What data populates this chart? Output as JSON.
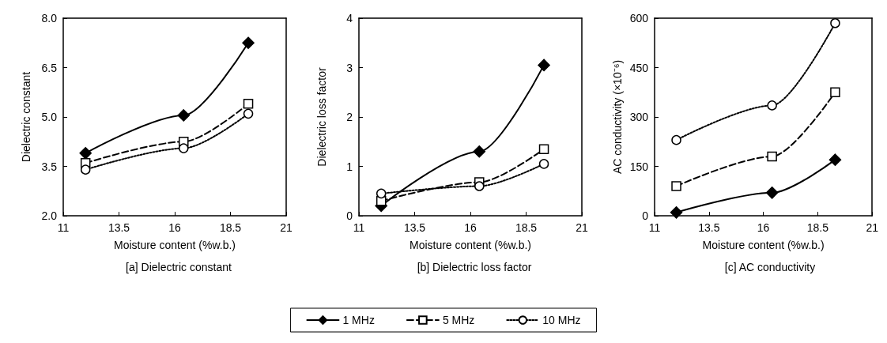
{
  "chart_data": [
    {
      "type": "line",
      "subtitle": "[a] Dielectric constant",
      "xlabel": "Moisture content (%w.b.)",
      "ylabel": "Dielectric constant",
      "x": [
        12,
        16.4,
        19.3
      ],
      "xlim": [
        11,
        21
      ],
      "xticks": [
        11,
        13.5,
        16,
        18.5,
        21
      ],
      "ylim": [
        2,
        8
      ],
      "yticks": [
        {
          "value": 2,
          "label": "2.0"
        },
        {
          "value": 3.5,
          "label": "3.5"
        },
        {
          "value": 5,
          "label": "5.0"
        },
        {
          "value": 6.5,
          "label": "6.5"
        },
        {
          "value": 8,
          "label": "8.0"
        }
      ],
      "grid": false,
      "legend": "bottom",
      "series": [
        {
          "name": "1 MHz",
          "color": "#000000",
          "marker": "diamond",
          "line_style": "solid",
          "values": [
            3.9,
            5.05,
            7.25
          ]
        },
        {
          "name": "5 MHz",
          "color": "#000000",
          "marker": "square",
          "line_style": "dashed",
          "values": [
            3.6,
            4.25,
            5.4
          ]
        },
        {
          "name": "10 MHz",
          "color": "#000000",
          "marker": "circle",
          "line_style": "dotted",
          "values": [
            3.4,
            4.05,
            5.1
          ]
        }
      ]
    },
    {
      "type": "line",
      "subtitle": "[b] Dielectric loss factor",
      "xlabel": "Moisture content (%w.b.)",
      "ylabel": "Dielectric loss factor",
      "x": [
        12,
        16.4,
        19.3
      ],
      "xlim": [
        11,
        21
      ],
      "xticks": [
        11,
        13.5,
        16,
        18.5,
        21
      ],
      "ylim": [
        0,
        4
      ],
      "yticks": [
        0,
        1,
        2,
        3,
        4
      ],
      "grid": false,
      "legend": "bottom",
      "series": [
        {
          "name": "1 MHz",
          "color": "#000000",
          "marker": "diamond",
          "line_style": "solid",
          "values": [
            0.2,
            1.3,
            3.05
          ]
        },
        {
          "name": "5 MHz",
          "color": "#000000",
          "marker": "square",
          "line_style": "dashed",
          "values": [
            0.3,
            0.68,
            1.35
          ]
        },
        {
          "name": "10 MHz",
          "color": "#000000",
          "marker": "circle",
          "line_style": "dotted",
          "values": [
            0.45,
            0.6,
            1.05
          ]
        }
      ]
    },
    {
      "type": "line",
      "subtitle": "[c] AC conductivity",
      "xlabel": "Moisture content (%w.b.)",
      "ylabel": "AC conductivity (×10⁻⁶)",
      "x": [
        12,
        16.4,
        19.3
      ],
      "xlim": [
        11,
        21
      ],
      "xticks": [
        11,
        13.5,
        16,
        18.5,
        21
      ],
      "ylim": [
        0,
        600
      ],
      "yticks": [
        0,
        150,
        300,
        450,
        600
      ],
      "grid": false,
      "legend": "bottom",
      "series": [
        {
          "name": "1 MHz",
          "color": "#000000",
          "marker": "diamond",
          "line_style": "solid",
          "values": [
            10,
            70,
            170
          ]
        },
        {
          "name": "5 MHz",
          "color": "#000000",
          "marker": "square",
          "line_style": "dashed",
          "values": [
            90,
            180,
            375
          ]
        },
        {
          "name": "10 MHz",
          "color": "#000000",
          "marker": "circle",
          "line_style": "dotted",
          "values": [
            230,
            335,
            585
          ]
        }
      ]
    }
  ]
}
